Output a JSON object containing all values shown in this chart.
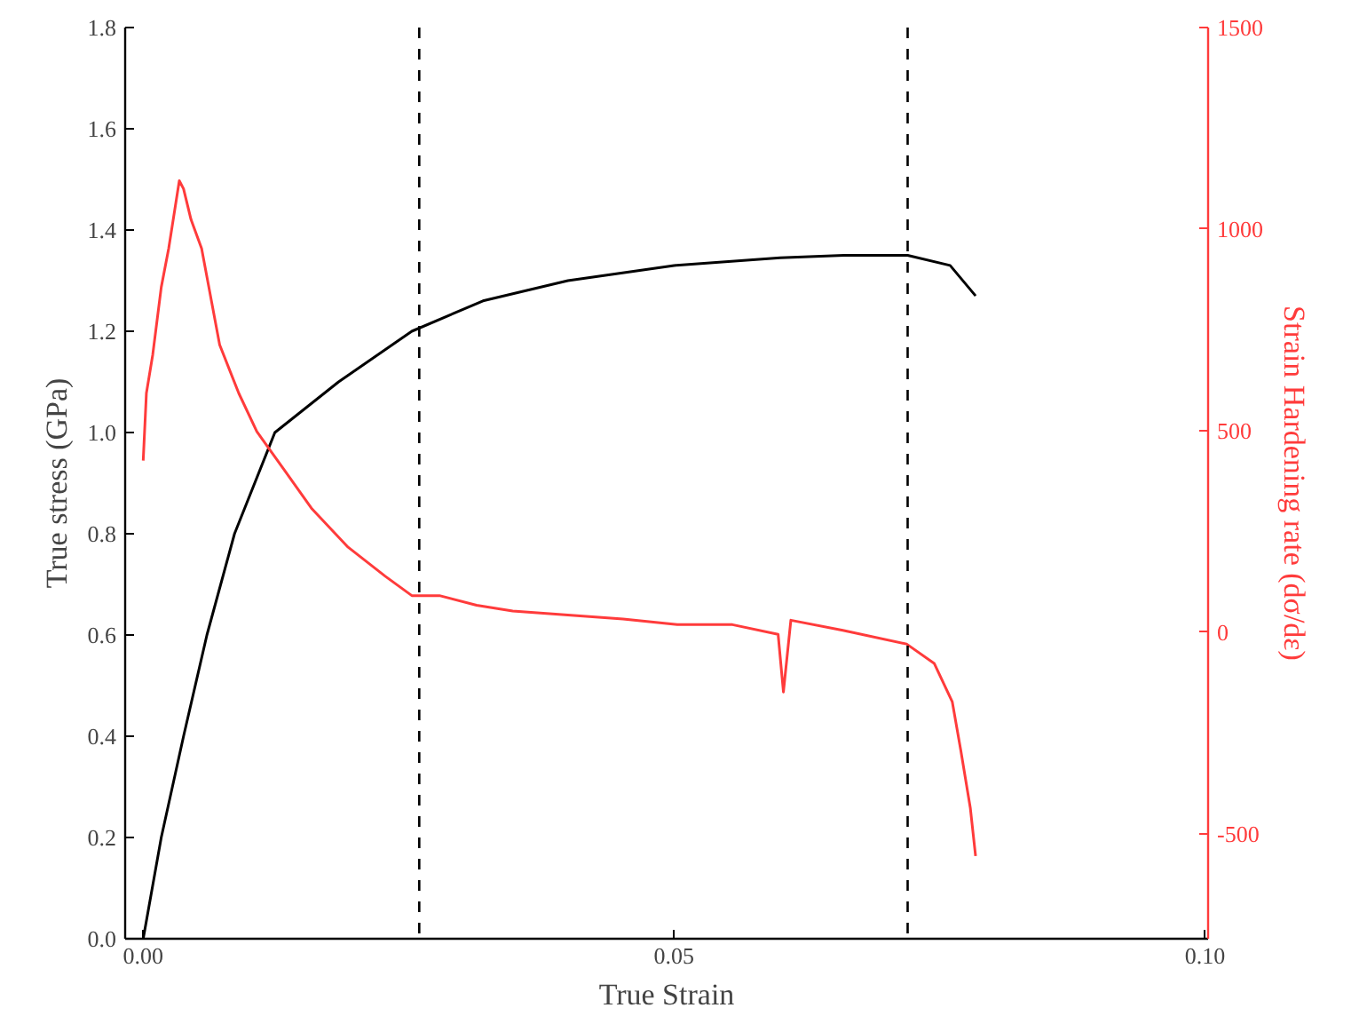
{
  "chart_data": {
    "type": "line",
    "xlabel": "True Strain",
    "ylabel": "True stress (GPa)",
    "y2label": "Strain Hardening rate (dσ/dε)",
    "xlim": [
      -0.0017,
      0.1003
    ],
    "xticks": [
      {
        "value": 0,
        "label": "0.00"
      },
      0.05,
      {
        "value": 0.1,
        "label": "0.10"
      }
    ],
    "ylim": [
      0,
      1.8
    ],
    "yticks": [
      {
        "value": 0,
        "label": "0.0"
      },
      0.2,
      0.4,
      0.6,
      0.8,
      {
        "value": 1,
        "label": "1.0"
      },
      1.2,
      1.4,
      1.6,
      1.8
    ],
    "y2lim": [
      -760,
      1500
    ],
    "y2ticks": [
      -500,
      0,
      500,
      1000,
      1500
    ],
    "grid": false,
    "line_style": "solid",
    "marker": "none",
    "ref_lines": [
      {
        "axis": "x",
        "value": 0.026,
        "color": "#000000",
        "line_style": "dashed"
      },
      {
        "axis": "x",
        "value": 0.072,
        "color": "#000000",
        "line_style": "dashed"
      }
    ],
    "series": [
      {
        "color": "#000000",
        "x": [
          0,
          0.0017,
          0.0038,
          0.006,
          0.0086,
          0.0124,
          0.0184,
          0.0253,
          0.032,
          0.04,
          0.05,
          0.06,
          0.066,
          0.072,
          0.076,
          0.0784
        ],
        "values": [
          0,
          0.2,
          0.4,
          0.6,
          0.8,
          1.0,
          1.1,
          1.2,
          1.26,
          1.3,
          1.33,
          1.345,
          1.35,
          1.35,
          1.33,
          1.27
        ]
      },
      {
        "color": "#ff3b3b",
        "axis": "y2",
        "x": [
          0,
          0.0003,
          0.0009,
          0.0017,
          0.0024,
          0.0034,
          0.0038,
          0.0045,
          0.0055,
          0.0072,
          0.009,
          0.0107,
          0.0133,
          0.0159,
          0.0193,
          0.0228,
          0.0253,
          0.0279,
          0.0314,
          0.0348,
          0.04,
          0.0452,
          0.0503,
          0.0555,
          0.0598,
          0.0603,
          0.061,
          0.0659,
          0.0719,
          0.0745,
          0.0762,
          0.077,
          0.0779,
          0.0784
        ],
        "values": [
          426,
          593,
          689,
          856,
          952,
          1120,
          1100,
          1024,
          952,
          713,
          593,
          498,
          402,
          306,
          211,
          139,
          91,
          91,
          67,
          53,
          43,
          33,
          19,
          19,
          -5,
          -148,
          30,
          5,
          -29,
          -77,
          -172,
          -292,
          -435,
          -555
        ]
      }
    ]
  }
}
